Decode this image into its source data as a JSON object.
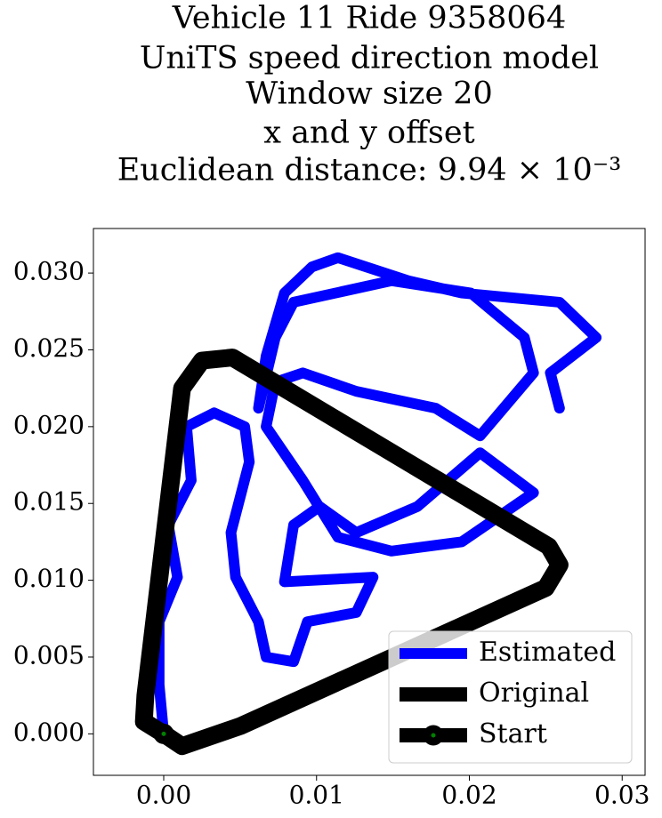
{
  "chart_data": {
    "type": "line",
    "title": [
      "Vehicle 11 Ride 9358064",
      "UniTS speed direction model",
      "Window size 20",
      "x and y offset",
      "Euclidean distance: 9.94 × 10⁻³"
    ],
    "series": [
      {
        "name": "Estimated",
        "color": "#0000ff",
        "x": [
          0,
          -0.0003,
          -0.0003,
          0.0009,
          0.0003,
          0.0018,
          0.0015,
          0.0033,
          0.0053,
          0.0056,
          0.0044,
          0.0047,
          0.0062,
          0.0067,
          0.0085,
          0.0094,
          0.0126,
          0.0137,
          0.0079,
          0.0085,
          0.0102,
          0.0126,
          0.0166,
          0.0207,
          0.0242,
          0.0195,
          0.0149,
          0.0114,
          0.0091,
          0.0067,
          0.0073,
          0.0091,
          0.0126,
          0.0178,
          0.0207,
          0.0242,
          0.0236,
          0.0201,
          0.0149,
          0.0085,
          0.0073,
          0.0062,
          0.0067,
          0.0079,
          0.0097,
          0.0114,
          0.016,
          0.0195,
          0.0259,
          0.0283,
          0.0253,
          0.0259
        ],
        "values": [
          0,
          0.0032,
          0.0073,
          0.0102,
          0.0136,
          0.0165,
          0.02,
          0.0209,
          0.02,
          0.0177,
          0.0131,
          0.0102,
          0.0073,
          0.005,
          0.0047,
          0.0073,
          0.0079,
          0.0102,
          0.0099,
          0.0136,
          0.0148,
          0.0131,
          0.0148,
          0.0183,
          0.0157,
          0.0125,
          0.0119,
          0.0128,
          0.0165,
          0.02,
          0.0229,
          0.0235,
          0.0223,
          0.0212,
          0.0194,
          0.0235,
          0.0258,
          0.0287,
          0.0295,
          0.0281,
          0.0258,
          0.0212,
          0.0246,
          0.0287,
          0.0304,
          0.031,
          0.0295,
          0.0287,
          0.0281,
          0.0258,
          0.0235,
          0.0212
        ]
      },
      {
        "name": "Original",
        "color": "#000000",
        "x": [
          0,
          0.0012,
          0.005,
          0.025,
          0.0259,
          0.0252,
          0.0045,
          0.0025,
          0.0012,
          -0.0012,
          -0.0013,
          0
        ],
        "values": [
          0,
          -0.0008,
          0.0005,
          0.0095,
          0.011,
          0.0122,
          0.0245,
          0.0243,
          0.0225,
          0.0025,
          0.0008,
          0
        ]
      },
      {
        "name": "Start",
        "color": "#000000",
        "marker_color": "#008000",
        "x": [
          0
        ],
        "values": [
          0
        ]
      }
    ],
    "xlim": [
      -0.0046,
      0.0315
    ],
    "ylim": [
      -0.0027,
      0.0329
    ],
    "xticks": [
      {
        "value": 0,
        "label": "0.00"
      },
      {
        "value": 0.01,
        "label": "0.01"
      },
      {
        "value": 0.02,
        "label": "0.02"
      },
      {
        "value": 0.03,
        "label": "0.03"
      }
    ],
    "yticks": [
      {
        "value": 0,
        "label": "0.000"
      },
      {
        "value": 0.005,
        "label": "0.005"
      },
      {
        "value": 0.01,
        "label": "0.010"
      },
      {
        "value": 0.015,
        "label": "0.015"
      },
      {
        "value": 0.02,
        "label": "0.020"
      },
      {
        "value": 0.025,
        "label": "0.025"
      },
      {
        "value": 0.03,
        "label": "0.030"
      }
    ],
    "legend": "lower right"
  }
}
